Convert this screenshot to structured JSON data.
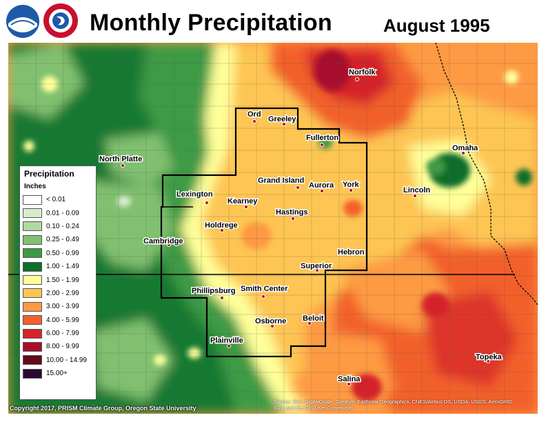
{
  "header": {
    "title": "Monthly Precipitation",
    "subtitle": "August 1995",
    "logos": [
      "noaa-logo",
      "nws-logo"
    ]
  },
  "legend": {
    "title": "Precipitation",
    "units": "Inches",
    "items": [
      {
        "label": "< 0.01",
        "color": "#ffffff"
      },
      {
        "label": "0.01 - 0.09",
        "color": "#d8ecd0"
      },
      {
        "label": "0.10 - 0.24",
        "color": "#b0d8a0"
      },
      {
        "label": "0.25 - 0.49",
        "color": "#80c070"
      },
      {
        "label": "0.50 - 0.99",
        "color": "#3c9a44"
      },
      {
        "label": "1.00 - 1.49",
        "color": "#0d6e2a"
      },
      {
        "label": "1.50 - 1.99",
        "color": "#ffff99"
      },
      {
        "label": "2.00 - 2.99",
        "color": "#fdc553"
      },
      {
        "label": "3.00 - 3.99",
        "color": "#fd9a43"
      },
      {
        "label": "4.00 - 5.99",
        "color": "#f2602c"
      },
      {
        "label": "6.00 - 7.99",
        "color": "#d5232a"
      },
      {
        "label": "8.00 - 9.99",
        "color": "#a80d2e"
      },
      {
        "label": "10.00 - 14.99",
        "color": "#650a1e"
      },
      {
        "label": "15.00+",
        "color": "#2a0a30"
      }
    ]
  },
  "cities": [
    {
      "name": "Norfolk"
    },
    {
      "name": "Ord"
    },
    {
      "name": "Greeley"
    },
    {
      "name": "Fullerton"
    },
    {
      "name": "North Platte"
    },
    {
      "name": "Omaha"
    },
    {
      "name": "Grand Island"
    },
    {
      "name": "Aurora"
    },
    {
      "name": "York"
    },
    {
      "name": "Lincoln"
    },
    {
      "name": "Lexington"
    },
    {
      "name": "Kearney"
    },
    {
      "name": "Hastings"
    },
    {
      "name": "Holdrege"
    },
    {
      "name": "Cambridge"
    },
    {
      "name": "Hebron"
    },
    {
      "name": "Superior"
    },
    {
      "name": "Phillipsburg"
    },
    {
      "name": "Smith Center"
    },
    {
      "name": "Osborne"
    },
    {
      "name": "Beloit"
    },
    {
      "name": "Plainville"
    },
    {
      "name": "Topeka"
    },
    {
      "name": "Salina"
    }
  ],
  "footer": {
    "copyright": "Copyright 2017, PRISM Climate Group, Oregon State University",
    "source_line1": "Source: Esri, DigitalGlobe, GeoEye, Earthstar Geographics, CNES/Airbus DS, USDA, USGS, AeroGRID,",
    "source_line2": "IGN, and the GIS User Community"
  }
}
